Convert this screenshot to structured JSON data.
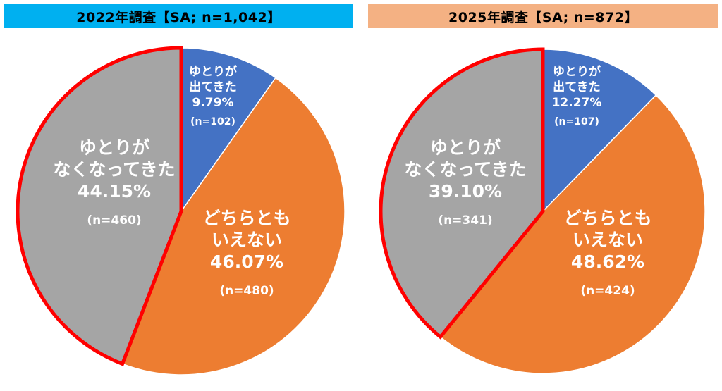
{
  "colors": {
    "header_2022": "#00b0f0",
    "header_2025": "#f4b183",
    "increased": "#4472c4",
    "neither": "#ed7d31",
    "decreased": "#a5a5a5",
    "highlight_border": "#ff0000",
    "label_text": "#ffffff"
  },
  "chart_data": [
    {
      "type": "pie",
      "title": "2022年調査【SA; n=1,042】",
      "slices": [
        {
          "label_lines": [
            "ゆとりが",
            "出てきた"
          ],
          "percent": 9.79,
          "percent_text": "9.79%",
          "n_text": "(n=102)",
          "count": 102,
          "color": "#4472c4"
        },
        {
          "label_lines": [
            "どちらとも",
            "いえない"
          ],
          "percent": 46.07,
          "percent_text": "46.07%",
          "n_text": "(n=480)",
          "count": 480,
          "color": "#ed7d31"
        },
        {
          "label_lines": [
            "ゆとりが",
            "なくなってきた"
          ],
          "percent": 44.15,
          "percent_text": "44.15%",
          "n_text": "(n=460)",
          "count": 460,
          "color": "#a5a5a5",
          "highlighted": true
        }
      ]
    },
    {
      "type": "pie",
      "title": "2025年調査【SA; n=872】",
      "slices": [
        {
          "label_lines": [
            "ゆとりが",
            "出てきた"
          ],
          "percent": 12.27,
          "percent_text": "12.27%",
          "n_text": "(n=107)",
          "count": 107,
          "color": "#4472c4"
        },
        {
          "label_lines": [
            "どちらとも",
            "いえない"
          ],
          "percent": 48.62,
          "percent_text": "48.62%",
          "n_text": "(n=424)",
          "count": 424,
          "color": "#ed7d31"
        },
        {
          "label_lines": [
            "ゆとりが",
            "なくなってきた"
          ],
          "percent": 39.1,
          "percent_text": "39.10%",
          "n_text": "(n=341)",
          "count": 341,
          "color": "#a5a5a5",
          "highlighted": true
        }
      ]
    }
  ]
}
